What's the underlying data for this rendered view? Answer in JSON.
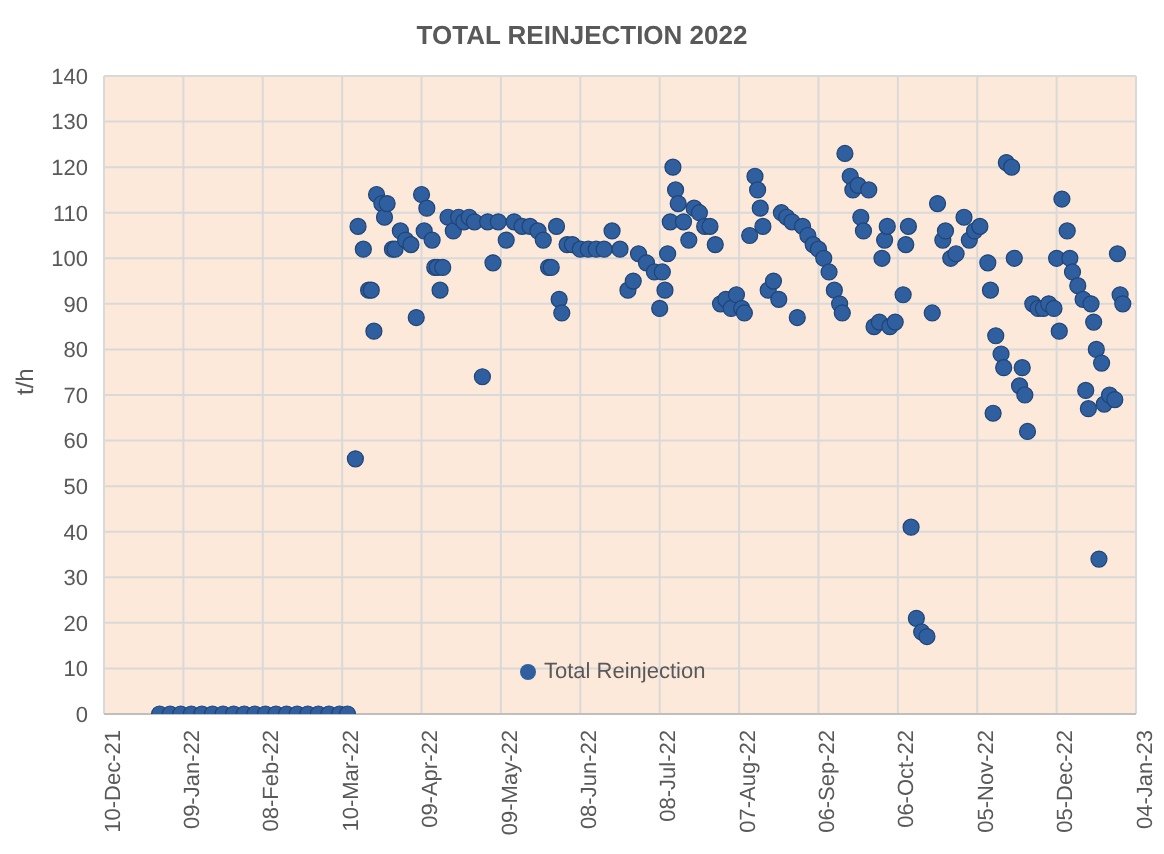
{
  "chart_data": {
    "type": "scatter",
    "title": "TOTAL REINJECTION 2022",
    "ylabel": "t/h",
    "marker": "circle",
    "grid": true,
    "legend": "bottom",
    "xlim": [
      "2021-12-10",
      "2023-01-04"
    ],
    "xticks": [
      {
        "value": "2021-12-10",
        "label": "10-Dec-21"
      },
      {
        "value": "2022-01-09",
        "label": "09-Jan-22"
      },
      {
        "value": "2022-02-08",
        "label": "08-Feb-22"
      },
      {
        "value": "2022-03-10",
        "label": "10-Mar-22"
      },
      {
        "value": "2022-04-09",
        "label": "09-Apr-22"
      },
      {
        "value": "2022-05-09",
        "label": "09-May-22"
      },
      {
        "value": "2022-06-08",
        "label": "08-Jun-22"
      },
      {
        "value": "2022-07-08",
        "label": "08-Jul-22"
      },
      {
        "value": "2022-08-07",
        "label": "07-Aug-22"
      },
      {
        "value": "2022-09-06",
        "label": "06-Sep-22"
      },
      {
        "value": "2022-10-06",
        "label": "06-Oct-22"
      },
      {
        "value": "2022-11-05",
        "label": "05-Nov-22"
      },
      {
        "value": "2022-12-05",
        "label": "05-Dec-22"
      },
      {
        "value": "2023-01-04",
        "label": "04-Jan-23"
      }
    ],
    "ylim": [
      0,
      140
    ],
    "yticks": [
      0,
      10,
      20,
      30,
      40,
      50,
      60,
      70,
      80,
      90,
      100,
      110,
      120,
      130,
      140
    ],
    "series": [
      {
        "name": "Total Reinjection",
        "color": "#2f5f9e",
        "x": [
          "2021-12-31",
          "2022-01-04",
          "2022-01-08",
          "2022-01-12",
          "2022-01-16",
          "2022-01-20",
          "2022-01-24",
          "2022-01-28",
          "2022-02-01",
          "2022-02-05",
          "2022-02-09",
          "2022-02-13",
          "2022-02-17",
          "2022-02-21",
          "2022-02-25",
          "2022-03-01",
          "2022-03-05",
          "2022-03-09",
          "2022-03-12",
          "2022-03-15",
          "2022-03-16",
          "2022-03-18",
          "2022-03-20",
          "2022-03-21",
          "2022-03-22",
          "2022-03-23",
          "2022-03-25",
          "2022-03-26",
          "2022-03-27",
          "2022-03-29",
          "2022-03-30",
          "2022-04-01",
          "2022-04-03",
          "2022-04-05",
          "2022-04-07",
          "2022-04-09",
          "2022-04-10",
          "2022-04-11",
          "2022-04-13",
          "2022-04-14",
          "2022-04-15",
          "2022-04-16",
          "2022-04-17",
          "2022-04-19",
          "2022-04-21",
          "2022-04-23",
          "2022-04-25",
          "2022-04-27",
          "2022-04-29",
          "2022-05-02",
          "2022-05-04",
          "2022-05-06",
          "2022-05-08",
          "2022-05-11",
          "2022-05-14",
          "2022-05-17",
          "2022-05-20",
          "2022-05-23",
          "2022-05-25",
          "2022-05-27",
          "2022-05-28",
          "2022-05-30",
          "2022-05-31",
          "2022-06-01",
          "2022-06-03",
          "2022-06-05",
          "2022-06-08",
          "2022-06-11",
          "2022-06-14",
          "2022-06-17",
          "2022-06-20",
          "2022-06-23",
          "2022-06-26",
          "2022-06-28",
          "2022-06-30",
          "2022-07-03",
          "2022-07-06",
          "2022-07-08",
          "2022-07-09",
          "2022-07-10",
          "2022-07-11",
          "2022-07-12",
          "2022-07-13",
          "2022-07-14",
          "2022-07-15",
          "2022-07-17",
          "2022-07-19",
          "2022-07-21",
          "2022-07-23",
          "2022-07-25",
          "2022-07-27",
          "2022-07-29",
          "2022-07-31",
          "2022-08-02",
          "2022-08-04",
          "2022-08-06",
          "2022-08-08",
          "2022-08-09",
          "2022-08-11",
          "2022-08-13",
          "2022-08-14",
          "2022-08-15",
          "2022-08-16",
          "2022-08-18",
          "2022-08-20",
          "2022-08-22",
          "2022-08-23",
          "2022-08-25",
          "2022-08-27",
          "2022-08-29",
          "2022-08-31",
          "2022-09-02",
          "2022-09-04",
          "2022-09-06",
          "2022-09-08",
          "2022-09-10",
          "2022-09-12",
          "2022-09-14",
          "2022-09-15",
          "2022-09-16",
          "2022-09-18",
          "2022-09-19",
          "2022-09-21",
          "2022-09-22",
          "2022-09-23",
          "2022-09-25",
          "2022-09-27",
          "2022-09-29",
          "2022-09-30",
          "2022-10-01",
          "2022-10-02",
          "2022-10-03",
          "2022-10-05",
          "2022-10-08",
          "2022-10-09",
          "2022-10-10",
          "2022-10-11",
          "2022-10-13",
          "2022-10-15",
          "2022-10-17",
          "2022-10-19",
          "2022-10-21",
          "2022-10-23",
          "2022-10-24",
          "2022-10-26",
          "2022-10-28",
          "2022-10-31",
          "2022-11-02",
          "2022-11-04",
          "2022-11-06",
          "2022-11-09",
          "2022-11-10",
          "2022-11-11",
          "2022-11-12",
          "2022-11-14",
          "2022-11-15",
          "2022-11-16",
          "2022-11-18",
          "2022-11-19",
          "2022-11-21",
          "2022-11-22",
          "2022-11-23",
          "2022-11-24",
          "2022-11-26",
          "2022-11-28",
          "2022-11-30",
          "2022-12-02",
          "2022-12-04",
          "2022-12-05",
          "2022-12-06",
          "2022-12-07",
          "2022-12-09",
          "2022-12-10",
          "2022-12-11",
          "2022-12-13",
          "2022-12-15",
          "2022-12-16",
          "2022-12-17",
          "2022-12-18",
          "2022-12-19",
          "2022-12-20",
          "2022-12-21",
          "2022-12-22",
          "2022-12-23",
          "2022-12-25",
          "2022-12-27",
          "2022-12-28",
          "2022-12-29",
          "2022-12-30"
        ],
        "values": [
          0,
          0,
          0,
          0,
          0,
          0,
          0,
          0,
          0,
          0,
          0,
          0,
          0,
          0,
          0,
          0,
          0,
          0,
          0,
          56,
          107,
          102,
          93,
          93,
          84,
          114,
          112,
          109,
          112,
          102,
          102,
          106,
          104,
          103,
          87,
          114,
          106,
          111,
          104,
          98,
          98,
          93,
          98,
          109,
          106,
          109,
          108,
          109,
          108,
          74,
          108,
          99,
          108,
          104,
          108,
          107,
          107,
          106,
          104,
          98,
          98,
          107,
          91,
          88,
          103,
          103,
          102,
          102,
          102,
          102,
          106,
          102,
          93,
          95,
          101,
          99,
          97,
          89,
          97,
          93,
          101,
          108,
          120,
          115,
          112,
          108,
          104,
          111,
          110,
          107,
          107,
          103,
          90,
          91,
          89,
          92,
          89,
          88,
          105,
          118,
          115,
          111,
          107,
          93,
          95,
          91,
          110,
          109,
          108,
          87,
          107,
          105,
          103,
          102,
          100,
          97,
          93,
          90,
          88,
          123,
          118,
          115,
          116,
          109,
          106,
          115,
          85,
          86,
          100,
          104,
          107,
          85,
          86,
          92,
          103,
          107,
          41,
          21,
          18,
          17,
          88,
          112,
          104,
          106,
          100,
          101,
          109,
          104,
          106,
          107,
          99,
          93,
          66,
          83,
          79,
          76,
          121,
          120,
          100,
          72,
          76,
          70,
          62,
          90,
          89,
          89,
          90,
          89,
          100,
          84,
          113,
          106,
          100,
          97,
          94,
          91,
          71,
          67,
          90,
          86,
          80,
          34,
          77,
          68,
          70,
          69,
          101,
          92,
          90
        ]
      }
    ]
  }
}
